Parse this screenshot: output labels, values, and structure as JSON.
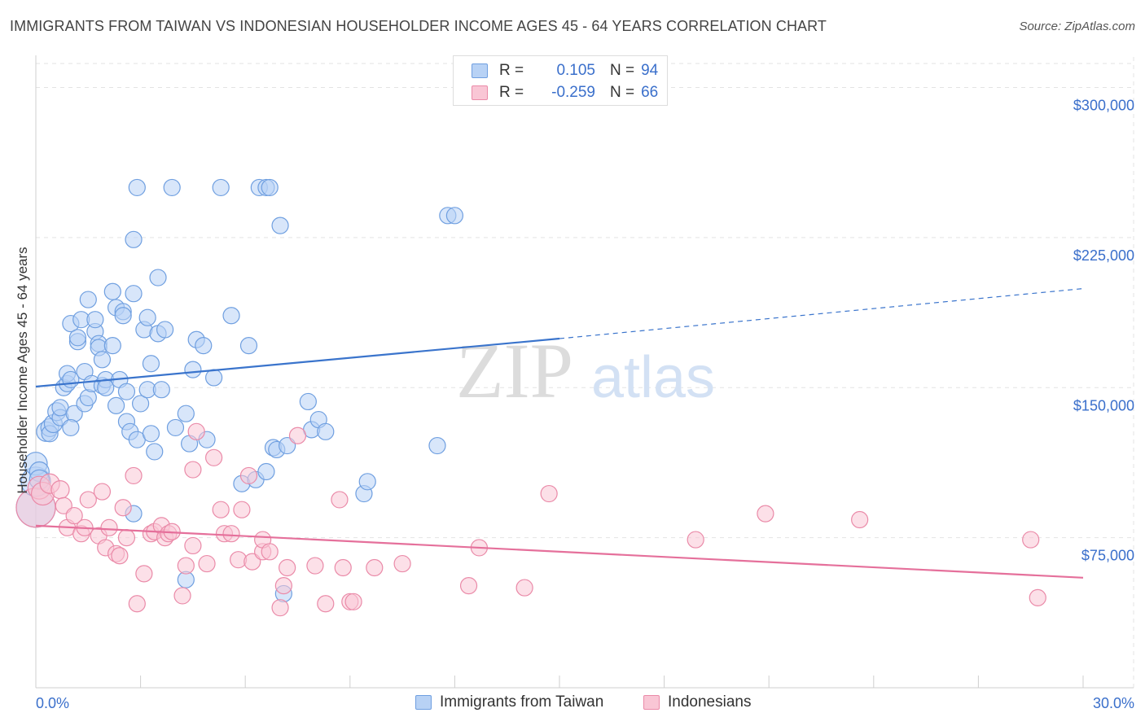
{
  "title": "IMMIGRANTS FROM TAIWAN VS INDONESIAN HOUSEHOLDER INCOME AGES 45 - 64 YEARS CORRELATION CHART",
  "source": "Source: ZipAtlas.com",
  "watermark": {
    "zip": "ZIP",
    "atlas": "atlas"
  },
  "stats": [
    {
      "r_label": "R =",
      "r_value": "0.105",
      "n_label": "N =",
      "n_value": "94"
    },
    {
      "r_label": "R =",
      "r_value": "-0.259",
      "n_label": "N =",
      "n_value": "66"
    }
  ],
  "legend": {
    "blue": "Immigrants from Taiwan",
    "pink": "Indonesians"
  },
  "colors": {
    "blue_fill": "#b8d2f5",
    "blue_stroke": "#6f9fe0",
    "blue_line": "#3a74cc",
    "pink_fill": "#f9c6d5",
    "pink_stroke": "#ea8aa8",
    "pink_line": "#e5709b",
    "axis_text": "#3a6fcb",
    "grid": "#e3e3e3"
  },
  "chart_data": {
    "type": "scatter",
    "title": "IMMIGRANTS FROM TAIWAN VS INDONESIAN HOUSEHOLDER INCOME AGES 45 - 64 YEARS CORRELATION CHART",
    "xlabel": "",
    "ylabel": "Householder Income Ages 45 - 64 years",
    "xlim": [
      0,
      30
    ],
    "ylim": [
      0,
      312000
    ],
    "x_tick_labels": [
      "0.0%",
      "30.0%"
    ],
    "y_ticks": [
      75000,
      150000,
      225000,
      300000
    ],
    "y_tick_labels": [
      "$75,000",
      "$150,000",
      "$225,000",
      "$300,000"
    ],
    "grid": true,
    "series": [
      {
        "name": "Immigrants from Taiwan",
        "trend": {
          "x": [
            0,
            15
          ],
          "y": [
            150500,
            174500
          ],
          "dashed_to": [
            30,
            199500
          ]
        },
        "points": [
          [
            0.0,
            90000,
            24
          ],
          [
            0.0,
            103000,
            18
          ],
          [
            0.0,
            112000,
            14
          ],
          [
            0.1,
            108000,
            12
          ],
          [
            0.1,
            104000,
            12
          ],
          [
            0.3,
            128000,
            12
          ],
          [
            0.4,
            130000,
            11
          ],
          [
            0.4,
            127000,
            10
          ],
          [
            0.5,
            132000,
            11
          ],
          [
            0.6,
            138000,
            11
          ],
          [
            0.7,
            135000,
            10
          ],
          [
            0.7,
            140000,
            10
          ],
          [
            0.8,
            150000,
            10
          ],
          [
            0.9,
            152000,
            10
          ],
          [
            0.9,
            157000,
            10
          ],
          [
            1.0,
            154000,
            10
          ],
          [
            1.1,
            137000,
            10
          ],
          [
            1.0,
            182000,
            10
          ],
          [
            1.2,
            173000,
            10
          ],
          [
            1.2,
            175000,
            10
          ],
          [
            1.3,
            184000,
            10
          ],
          [
            1.4,
            158000,
            10
          ],
          [
            1.4,
            142000,
            10
          ],
          [
            1.5,
            145000,
            10
          ],
          [
            1.5,
            194000,
            10
          ],
          [
            1.6,
            152000,
            10
          ],
          [
            1.7,
            178000,
            10
          ],
          [
            1.7,
            184000,
            10
          ],
          [
            1.8,
            172000,
            10
          ],
          [
            1.8,
            170000,
            10
          ],
          [
            1.9,
            164000,
            10
          ],
          [
            1.9,
            151000,
            10
          ],
          [
            2.0,
            154000,
            10
          ],
          [
            2.0,
            150000,
            10
          ],
          [
            2.2,
            198000,
            10
          ],
          [
            2.2,
            171000,
            10
          ],
          [
            2.3,
            190000,
            10
          ],
          [
            2.3,
            141000,
            10
          ],
          [
            2.4,
            154000,
            10
          ],
          [
            2.5,
            188000,
            10
          ],
          [
            2.5,
            186000,
            10
          ],
          [
            2.6,
            148000,
            10
          ],
          [
            2.6,
            133000,
            10
          ],
          [
            2.7,
            128000,
            10
          ],
          [
            2.8,
            197000,
            10
          ],
          [
            2.8,
            224000,
            10
          ],
          [
            2.9,
            250000,
            10
          ],
          [
            2.9,
            124000,
            10
          ],
          [
            3.0,
            142000,
            10
          ],
          [
            3.1,
            179000,
            10
          ],
          [
            3.2,
            149000,
            10
          ],
          [
            3.2,
            185000,
            10
          ],
          [
            3.3,
            127000,
            10
          ],
          [
            3.3,
            162000,
            10
          ],
          [
            3.4,
            118000,
            10
          ],
          [
            3.5,
            177000,
            10
          ],
          [
            3.5,
            205000,
            10
          ],
          [
            3.6,
            149000,
            10
          ],
          [
            3.7,
            179000,
            10
          ],
          [
            3.9,
            250000,
            10
          ],
          [
            4.0,
            130000,
            10
          ],
          [
            4.3,
            137000,
            10
          ],
          [
            4.4,
            122000,
            10
          ],
          [
            4.5,
            159000,
            10
          ],
          [
            4.6,
            174000,
            10
          ],
          [
            4.8,
            171000,
            10
          ],
          [
            4.9,
            124000,
            10
          ],
          [
            5.1,
            155000,
            10
          ],
          [
            5.3,
            250000,
            10
          ],
          [
            5.6,
            186000,
            10
          ],
          [
            5.9,
            102000,
            10
          ],
          [
            6.1,
            171000,
            10
          ],
          [
            6.3,
            104000,
            10
          ],
          [
            6.4,
            250000,
            10
          ],
          [
            6.6,
            250000,
            10
          ],
          [
            6.7,
            250000,
            10
          ],
          [
            6.6,
            108000,
            10
          ],
          [
            6.8,
            120000,
            10
          ],
          [
            6.9,
            119000,
            10
          ],
          [
            7.0,
            231000,
            10
          ],
          [
            7.1,
            47000,
            10
          ],
          [
            7.2,
            121000,
            10
          ],
          [
            7.8,
            143000,
            10
          ],
          [
            7.9,
            129000,
            10
          ],
          [
            8.1,
            134000,
            10
          ],
          [
            8.3,
            128000,
            10
          ],
          [
            9.4,
            97000,
            10
          ],
          [
            9.5,
            103000,
            10
          ],
          [
            11.5,
            121000,
            10
          ],
          [
            11.8,
            236000,
            10
          ],
          [
            12.0,
            236000,
            10
          ],
          [
            4.3,
            54000,
            10
          ],
          [
            2.8,
            87000,
            10
          ],
          [
            1.0,
            130000,
            10
          ]
        ]
      },
      {
        "name": "Indonesians",
        "trend": {
          "x": [
            0,
            30
          ],
          "y": [
            81000,
            55000
          ]
        },
        "points": [
          [
            0.0,
            90000,
            24
          ],
          [
            0.1,
            100000,
            14
          ],
          [
            0.2,
            97000,
            14
          ],
          [
            0.4,
            102000,
            12
          ],
          [
            0.7,
            99000,
            11
          ],
          [
            0.8,
            91000,
            10
          ],
          [
            0.9,
            80000,
            10
          ],
          [
            1.1,
            86000,
            10
          ],
          [
            1.3,
            77000,
            10
          ],
          [
            1.4,
            80000,
            10
          ],
          [
            1.5,
            94000,
            10
          ],
          [
            1.8,
            76000,
            10
          ],
          [
            1.9,
            98000,
            10
          ],
          [
            2.0,
            70000,
            10
          ],
          [
            2.1,
            80000,
            10
          ],
          [
            2.3,
            67000,
            10
          ],
          [
            2.4,
            66000,
            10
          ],
          [
            2.5,
            90000,
            10
          ],
          [
            2.6,
            75000,
            10
          ],
          [
            2.8,
            106000,
            10
          ],
          [
            2.9,
            42000,
            10
          ],
          [
            3.1,
            57000,
            10
          ],
          [
            3.3,
            77000,
            10
          ],
          [
            3.4,
            78000,
            10
          ],
          [
            3.6,
            81000,
            10
          ],
          [
            3.7,
            75000,
            10
          ],
          [
            3.8,
            77000,
            10
          ],
          [
            3.9,
            78000,
            10
          ],
          [
            4.2,
            46000,
            10
          ],
          [
            4.3,
            61000,
            10
          ],
          [
            4.5,
            71000,
            10
          ],
          [
            4.5,
            109000,
            10
          ],
          [
            4.6,
            128000,
            10
          ],
          [
            4.9,
            62000,
            10
          ],
          [
            5.1,
            115000,
            10
          ],
          [
            5.3,
            89000,
            10
          ],
          [
            5.4,
            77000,
            10
          ],
          [
            5.6,
            77000,
            10
          ],
          [
            5.8,
            64000,
            10
          ],
          [
            5.9,
            89000,
            10
          ],
          [
            6.1,
            106000,
            10
          ],
          [
            6.2,
            63000,
            10
          ],
          [
            6.5,
            68000,
            10
          ],
          [
            6.5,
            74000,
            10
          ],
          [
            6.7,
            68000,
            10
          ],
          [
            7.0,
            40000,
            10
          ],
          [
            7.1,
            51000,
            10
          ],
          [
            7.2,
            60000,
            10
          ],
          [
            7.5,
            126000,
            10
          ],
          [
            8.0,
            61000,
            10
          ],
          [
            8.3,
            42000,
            10
          ],
          [
            8.7,
            94000,
            10
          ],
          [
            8.8,
            60000,
            10
          ],
          [
            9.0,
            43000,
            10
          ],
          [
            9.1,
            43000,
            10
          ],
          [
            9.7,
            60000,
            10
          ],
          [
            10.5,
            62000,
            10
          ],
          [
            12.4,
            51000,
            10
          ],
          [
            12.7,
            70000,
            10
          ],
          [
            14.0,
            50000,
            10
          ],
          [
            14.7,
            97000,
            10
          ],
          [
            18.9,
            74000,
            10
          ],
          [
            20.9,
            87000,
            10
          ],
          [
            23.6,
            84000,
            10
          ],
          [
            28.5,
            74000,
            10
          ],
          [
            28.7,
            45000,
            10
          ]
        ]
      }
    ]
  }
}
